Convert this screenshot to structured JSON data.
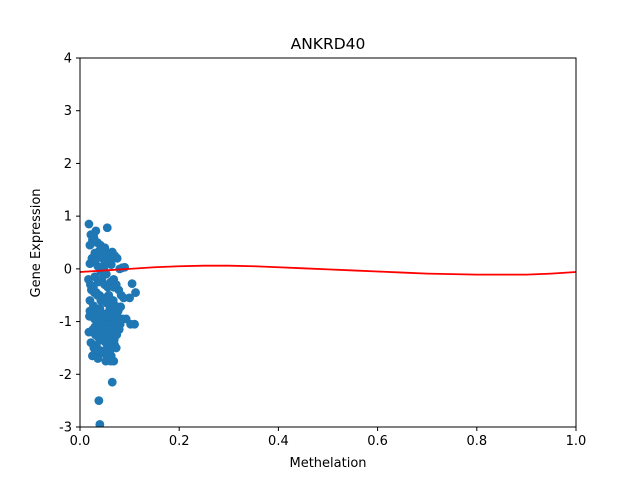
{
  "chart_data": {
    "type": "scatter",
    "title": "ANKRD40",
    "xlabel": "Methelation",
    "ylabel": "Gene Expression",
    "xlim": [
      0.0,
      1.0
    ],
    "ylim": [
      -3,
      4
    ],
    "x_ticks": [
      "0.0",
      "0.2",
      "0.4",
      "0.6",
      "0.8",
      "1.0"
    ],
    "y_ticks": [
      "-3",
      "-2",
      "-1",
      "0",
      "1",
      "2",
      "3",
      "4"
    ],
    "grid": false,
    "legend": "none",
    "colors": {
      "points": "#1f77b4",
      "fit_line": "#ff0000",
      "frame": "#000000"
    },
    "series": [
      {
        "kind": "points",
        "x": [
          0.018,
          0.022,
          0.025,
          0.02,
          0.028,
          0.032,
          0.035,
          0.03,
          0.04,
          0.045,
          0.05,
          0.055,
          0.06,
          0.065,
          0.07,
          0.075,
          0.08,
          0.085,
          0.09,
          0.1,
          0.105,
          0.112,
          0.02,
          0.024,
          0.03,
          0.036,
          0.042,
          0.048,
          0.053,
          0.058,
          0.063,
          0.068,
          0.073,
          0.078,
          0.083,
          0.088,
          0.093,
          0.102,
          0.11,
          0.017,
          0.021,
          0.027,
          0.033,
          0.039,
          0.044,
          0.05,
          0.056,
          0.061,
          0.067,
          0.072,
          0.077,
          0.082,
          0.019,
          0.023,
          0.029,
          0.034,
          0.038,
          0.043,
          0.047,
          0.052,
          0.057,
          0.062,
          0.066,
          0.071,
          0.076,
          0.081,
          0.086,
          0.018,
          0.026,
          0.031,
          0.037,
          0.041,
          0.046,
          0.051,
          0.054,
          0.059,
          0.064,
          0.069,
          0.074,
          0.079,
          0.022,
          0.028,
          0.033,
          0.039,
          0.044,
          0.049,
          0.055,
          0.06,
          0.065,
          0.07,
          0.025,
          0.03,
          0.036,
          0.041,
          0.047,
          0.052,
          0.058,
          0.063,
          0.068,
          0.073,
          0.02,
          0.027,
          0.034,
          0.04,
          0.046,
          0.053,
          0.059,
          0.064,
          0.069,
          0.075,
          0.023,
          0.029,
          0.035,
          0.042,
          0.048,
          0.054,
          0.06,
          0.066,
          0.071,
          0.03,
          0.037,
          0.044,
          0.05,
          0.056,
          0.062,
          0.068,
          0.032,
          0.038,
          0.045,
          0.051,
          0.057,
          0.063,
          0.034,
          0.041,
          0.047,
          0.055,
          0.061,
          0.036,
          0.043,
          0.049,
          0.058,
          0.04,
          0.045,
          0.052,
          0.03,
          0.055,
          0.062,
          0.038,
          0.04,
          0.02,
          0.028,
          0.035,
          0.05,
          0.058,
          0.065,
          0.03,
          0.045
        ],
        "y": [
          0.85,
          0.65,
          0.55,
          0.45,
          0.6,
          0.72,
          0.5,
          0.3,
          0.35,
          0.2,
          0.4,
          0.78,
          0.3,
          0.32,
          0.25,
          0.2,
          0.0,
          0.02,
          0.03,
          -0.55,
          -0.28,
          -0.45,
          0.1,
          0.2,
          0.15,
          0.05,
          -0.05,
          0.0,
          -0.1,
          0.12,
          0.08,
          -0.2,
          -0.3,
          -0.4,
          -0.5,
          -0.55,
          -0.95,
          -1.05,
          -1.05,
          -0.2,
          -0.3,
          -0.35,
          -0.45,
          -0.5,
          -0.6,
          -0.55,
          -0.65,
          -0.7,
          -0.6,
          -0.75,
          -0.8,
          -0.72,
          -0.9,
          -0.85,
          -0.95,
          -1.0,
          -0.9,
          -1.05,
          -0.98,
          -1.1,
          -1.0,
          -0.95,
          -1.05,
          -1.1,
          -1.0,
          -1.05,
          -0.95,
          -1.2,
          -1.15,
          -1.25,
          -1.3,
          -1.2,
          -1.35,
          -1.25,
          -1.3,
          -1.4,
          -1.2,
          -1.35,
          -1.25,
          -1.15,
          -1.4,
          -1.5,
          -1.45,
          -1.55,
          -1.35,
          -1.6,
          -1.5,
          -1.55,
          -1.3,
          -1.45,
          -1.65,
          -1.6,
          -1.7,
          -1.55,
          -1.6,
          -1.75,
          -1.45,
          -1.65,
          -1.75,
          -1.5,
          -0.6,
          -0.7,
          -0.8,
          -0.75,
          -0.85,
          -0.9,
          -0.8,
          -0.85,
          -0.95,
          -0.9,
          -0.4,
          -0.45,
          -0.5,
          -0.6,
          -0.55,
          -0.65,
          -0.7,
          -0.6,
          -0.7,
          -0.15,
          -0.25,
          -0.2,
          -0.3,
          -0.35,
          -0.25,
          -0.35,
          0.3,
          0.25,
          0.35,
          0.1,
          0.18,
          0.22,
          0.5,
          0.45,
          0.38,
          0.28,
          0.15,
          -1.1,
          -1.2,
          -1.15,
          -1.25,
          -1.05,
          -1.35,
          -1.4,
          -1.1,
          -1.7,
          -1.75,
          -2.5,
          -2.95,
          -0.8,
          -0.9,
          -1.0,
          -0.3,
          -0.5,
          -2.15,
          -1.5,
          -1.3
        ]
      },
      {
        "kind": "fit_line",
        "x": [
          0.0,
          0.05,
          0.1,
          0.15,
          0.2,
          0.25,
          0.3,
          0.35,
          0.4,
          0.45,
          0.5,
          0.55,
          0.6,
          0.65,
          0.7,
          0.75,
          0.8,
          0.85,
          0.9,
          0.95,
          1.0
        ],
        "y": [
          -0.06,
          -0.03,
          0.0,
          0.03,
          0.05,
          0.06,
          0.06,
          0.05,
          0.03,
          0.01,
          -0.01,
          -0.03,
          -0.05,
          -0.07,
          -0.09,
          -0.1,
          -0.11,
          -0.11,
          -0.11,
          -0.09,
          -0.06
        ]
      }
    ]
  }
}
